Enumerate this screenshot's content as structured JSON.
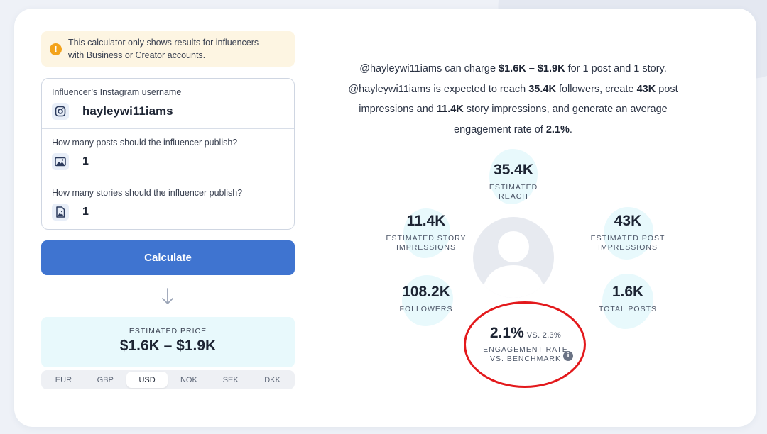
{
  "notice": {
    "line1": "This calculator only shows results for influencers",
    "line2": "with Business or Creator accounts."
  },
  "form": {
    "username": {
      "label": "Influencer’s Instagram username",
      "value": "hayleywi11iams"
    },
    "posts": {
      "label": "How many posts should the influencer publish?",
      "value": "1"
    },
    "stories": {
      "label": "How many stories should the influencer publish?",
      "value": "1"
    }
  },
  "calculate_label": "Calculate",
  "price": {
    "label": "ESTIMATED PRICE",
    "value": "$1.6K – $1.9K"
  },
  "currencies": [
    "EUR",
    "GBP",
    "USD",
    "NOK",
    "SEK",
    "DKK"
  ],
  "selected_currency": "USD",
  "summary": {
    "handle": "@hayleywi11iams",
    "charge_pre": " can charge ",
    "charge_value": "$1.6K – $1.9K",
    "charge_post": " for 1 post and 1 story.",
    "reach_pre": " is expected to reach ",
    "reach_value": "35.4K",
    "reach_post": " followers, create ",
    "impressions_value": "43K",
    "impressions_post": " post impressions and ",
    "story_value": "11.4K",
    "story_post": " story impressions, and generate an average engagement rate of ",
    "engagement_value": "2.1%",
    "end": "."
  },
  "stats": {
    "reach": {
      "value": "35.4K",
      "label": "ESTIMATED REACH"
    },
    "story_impressions": {
      "value": "11.4K",
      "label1": "ESTIMATED STORY",
      "label2": "IMPRESSIONS"
    },
    "post_impressions": {
      "value": "43K",
      "label1": "ESTIMATED POST",
      "label2": "IMPRESSIONS"
    },
    "followers": {
      "value": "108.2K",
      "label": "FOLLOWERS"
    },
    "total_posts": {
      "value": "1.6K",
      "label": "TOTAL POSTS"
    },
    "engagement": {
      "value": "2.1%",
      "benchmark": "VS. 2.3%",
      "label1": "ENGAGEMENT RATE",
      "label2": "VS. BENCHMARK"
    }
  },
  "colors": {
    "accent": "#3f74d0",
    "highlight": "#e3191c",
    "stat_bg": "#e8f9fc",
    "notice_bg": "#fdf5e2",
    "warning": "#f3a31b"
  },
  "icons": {
    "notice": "info-icon",
    "username": "instagram-icon",
    "posts": "image-icon",
    "stories": "story-icon",
    "arrow": "arrow-down-icon",
    "engagement_info": "info-icon"
  }
}
